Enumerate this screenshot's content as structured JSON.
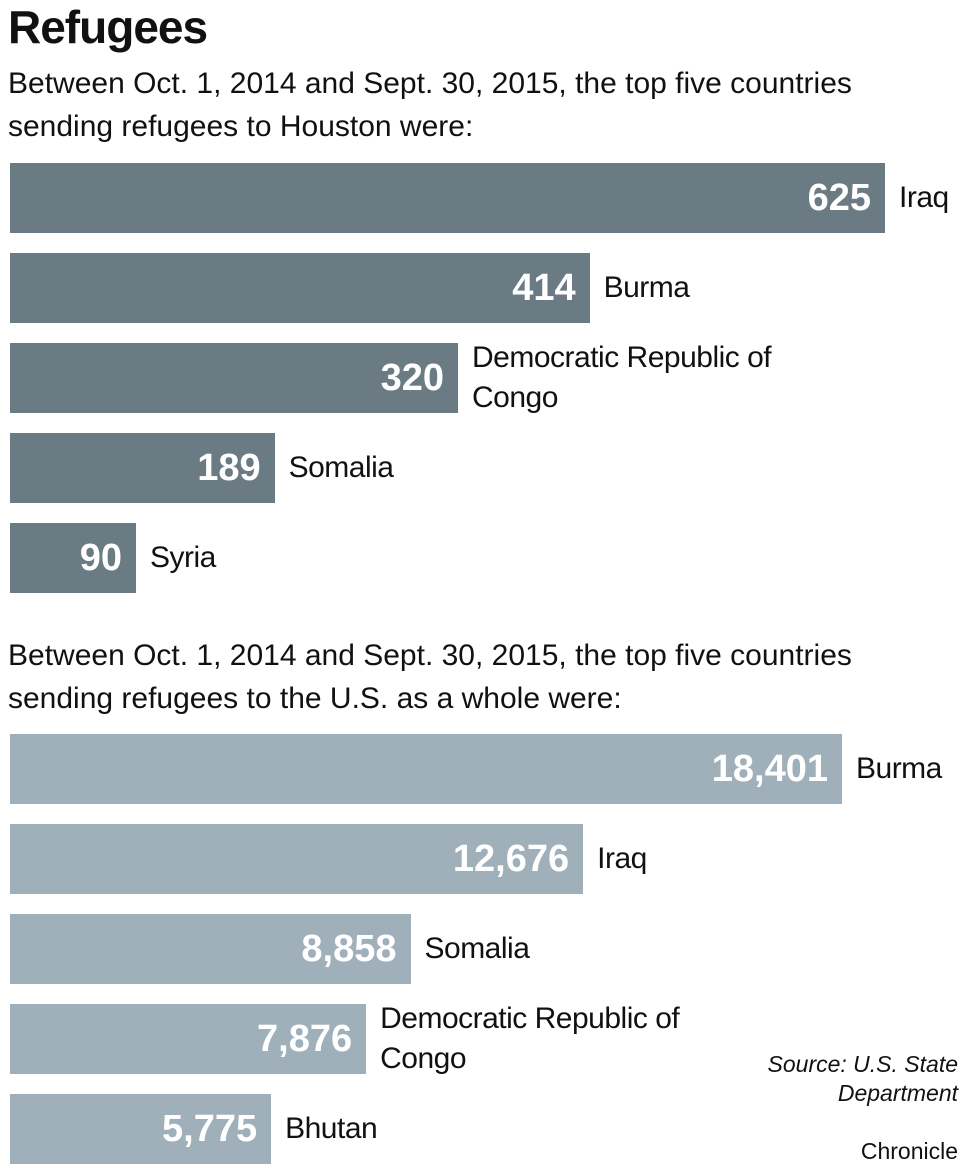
{
  "title": "Refugees",
  "chart_data": [
    {
      "type": "bar",
      "orientation": "horizontal",
      "subtitle": "Between Oct. 1, 2014 and Sept. 30, 2015, the top five countries sending refugees to Houston were:",
      "categories": [
        "Iraq",
        "Burma",
        "Democratic Republic of Congo",
        "Somalia",
        "Syria"
      ],
      "values": [
        625,
        414,
        320,
        189,
        90
      ],
      "color": "#6b7b84"
    },
    {
      "type": "bar",
      "orientation": "horizontal",
      "subtitle": "Between Oct. 1, 2014 and Sept. 30, 2015, the top five countries sending refugees to the U.S. as a whole were:",
      "categories": [
        "Burma",
        "Iraq",
        "Somalia",
        "Democratic Republic of Congo",
        "Bhutan"
      ],
      "values": [
        18401,
        12676,
        8858,
        7876,
        5775
      ],
      "value_labels": [
        "18,401",
        "12,676",
        "8,858",
        "7,876",
        "5,775"
      ],
      "color": "#a0b0ba"
    }
  ],
  "source": "Source: U.S. State Department",
  "credit": "Chronicle"
}
